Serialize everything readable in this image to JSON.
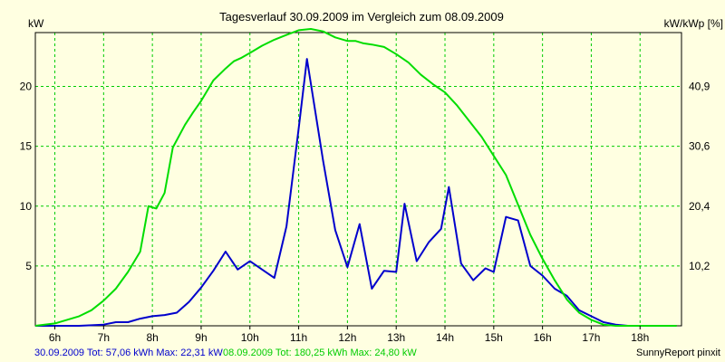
{
  "chart_data": {
    "type": "line",
    "title": "Tagesverlauf 30.09.2009 im Vergleich zum 08.09.2009",
    "ylabel_left": "kW",
    "ylabel_right": "kW/kWp [%]",
    "credit": "SunnyReport pinxit",
    "x_ticks": [
      "6h",
      "7h",
      "8h",
      "9h",
      "10h",
      "11h",
      "12h",
      "13h",
      "14h",
      "15h",
      "16h",
      "17h",
      "18h"
    ],
    "y_left_ticks": [
      5,
      10,
      15,
      20
    ],
    "y_right_ticks": [
      "10,2",
      "20,4",
      "30,6",
      "40,9"
    ],
    "x_range": [
      5.6,
      18.85
    ],
    "y_left_range": [
      0,
      24.5
    ],
    "grid": true,
    "series": [
      {
        "name": "30.09.2009",
        "summary": "30.09.2009 Tot: 57,06 kWh Max: 22,31 kW",
        "color": "#0000cc",
        "x": [
          5.6,
          6.0,
          6.5,
          7.0,
          7.25,
          7.5,
          7.75,
          8.0,
          8.25,
          8.5,
          8.75,
          9.0,
          9.25,
          9.5,
          9.75,
          10.0,
          10.25,
          10.5,
          10.75,
          11.0,
          11.17,
          11.5,
          11.75,
          12.0,
          12.25,
          12.5,
          12.75,
          13.0,
          13.17,
          13.42,
          13.67,
          13.92,
          14.08,
          14.33,
          14.58,
          14.83,
          15.0,
          15.25,
          15.5,
          15.75,
          16.0,
          16.25,
          16.5,
          16.75,
          17.0,
          17.25,
          17.5,
          17.75,
          18.0,
          18.25
        ],
        "y": [
          0,
          0,
          0,
          0.1,
          0.3,
          0.3,
          0.6,
          0.8,
          0.9,
          1.1,
          2.0,
          3.2,
          4.6,
          6.2,
          4.7,
          5.4,
          4.7,
          4.0,
          8.3,
          16.5,
          22.3,
          13.8,
          8.0,
          4.9,
          8.5,
          3.1,
          4.6,
          4.5,
          10.2,
          5.4,
          7.0,
          8.1,
          11.6,
          5.2,
          3.8,
          4.8,
          4.5,
          9.1,
          8.8,
          5.0,
          4.2,
          3.1,
          2.5,
          1.3,
          0.8,
          0.3,
          0.1,
          0,
          0,
          0
        ]
      },
      {
        "name": "08.09.2009",
        "summary": "08.09.2009 Tot: 180,25 kWh Max: 24,80 kW",
        "color": "#00dd00",
        "x": [
          5.6,
          6.0,
          6.25,
          6.5,
          6.75,
          7.0,
          7.25,
          7.5,
          7.75,
          7.92,
          8.08,
          8.25,
          8.42,
          8.67,
          8.83,
          9.0,
          9.25,
          9.5,
          9.67,
          9.83,
          10.0,
          10.25,
          10.5,
          10.75,
          11.0,
          11.25,
          11.5,
          11.75,
          12.0,
          12.17,
          12.33,
          12.5,
          12.75,
          13.0,
          13.25,
          13.5,
          13.75,
          14.0,
          14.25,
          14.5,
          14.75,
          15.0,
          15.25,
          15.5,
          15.75,
          16.0,
          16.25,
          16.5,
          16.75,
          17.0,
          17.25,
          17.5,
          17.75,
          18.0,
          18.25,
          18.5,
          18.75
        ],
        "y": [
          0,
          0.2,
          0.5,
          0.8,
          1.3,
          2.1,
          3.1,
          4.5,
          6.2,
          10.0,
          9.8,
          11.1,
          14.9,
          16.8,
          17.8,
          18.8,
          20.5,
          21.5,
          22.1,
          22.4,
          22.8,
          23.4,
          23.9,
          24.3,
          24.7,
          24.8,
          24.6,
          24.1,
          23.8,
          23.8,
          23.6,
          23.5,
          23.3,
          22.7,
          22.0,
          21.0,
          20.2,
          19.5,
          18.4,
          17.1,
          15.8,
          14.2,
          12.6,
          10.1,
          7.6,
          5.6,
          3.8,
          2.2,
          1.1,
          0.5,
          0.1,
          0,
          0,
          0,
          0,
          0,
          0
        ]
      }
    ]
  }
}
